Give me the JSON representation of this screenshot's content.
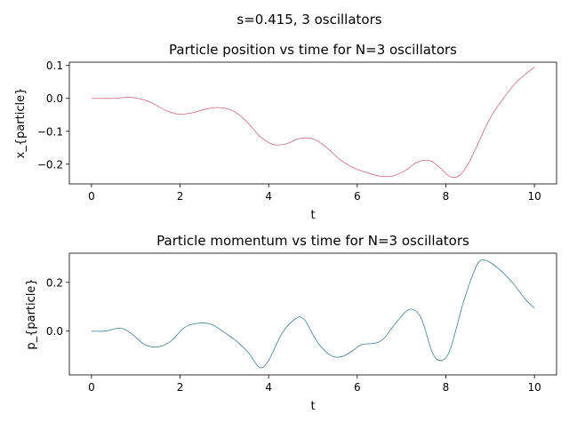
{
  "suptitle": "s=0.415, 3 oscillators",
  "chart_data": [
    {
      "type": "line",
      "title": "Particle position vs time for N=3 oscillators",
      "xlabel": "t",
      "ylabel": "x_{particle}",
      "xlim": [
        -0.5,
        10.5
      ],
      "ylim": [
        -0.26,
        0.11
      ],
      "xticks": [
        0,
        2,
        4,
        6,
        8,
        10
      ],
      "yticks": [
        -0.2,
        -0.1,
        0.0,
        0.1
      ],
      "xtick_labels": [
        "0",
        "2",
        "4",
        "6",
        "8",
        "10"
      ],
      "ytick_labels": [
        "−0.2",
        "−0.1",
        "0.0",
        "0.1"
      ],
      "grid": false,
      "color": "#c8677a",
      "x": [
        0,
        0.5,
        0.9,
        1.3,
        1.7,
        2.0,
        2.3,
        2.6,
        2.9,
        3.2,
        3.5,
        3.8,
        4.1,
        4.4,
        4.7,
        5.0,
        5.3,
        5.6,
        5.9,
        6.2,
        6.5,
        6.8,
        7.1,
        7.3,
        7.5,
        7.7,
        7.9,
        8.1,
        8.3,
        8.5,
        8.7,
        9.0,
        9.3,
        9.6,
        10.0
      ],
      "y": [
        0.0,
        0.0,
        0.003,
        -0.01,
        -0.038,
        -0.048,
        -0.043,
        -0.032,
        -0.028,
        -0.038,
        -0.07,
        -0.115,
        -0.14,
        -0.138,
        -0.122,
        -0.123,
        -0.148,
        -0.185,
        -0.21,
        -0.225,
        -0.236,
        -0.236,
        -0.218,
        -0.198,
        -0.188,
        -0.193,
        -0.215,
        -0.238,
        -0.235,
        -0.2,
        -0.145,
        -0.06,
        0.0,
        0.05,
        0.095
      ]
    },
    {
      "type": "line",
      "title": "Particle momentum vs time for N=3 oscillators",
      "xlabel": "t",
      "ylabel": "p_{particle}",
      "xlim": [
        -0.5,
        10.5
      ],
      "ylim": [
        -0.18,
        0.32
      ],
      "xticks": [
        0,
        2,
        4,
        6,
        8,
        10
      ],
      "yticks": [
        0.0,
        0.2
      ],
      "xtick_labels": [
        "0",
        "2",
        "4",
        "6",
        "8",
        "10"
      ],
      "ytick_labels": [
        "0.0",
        "0.2"
      ],
      "grid": false,
      "color": "#3f7f93",
      "x": [
        0,
        0.3,
        0.65,
        0.9,
        1.2,
        1.5,
        1.8,
        2.1,
        2.4,
        2.7,
        3.0,
        3.3,
        3.55,
        3.8,
        4.0,
        4.3,
        4.6,
        4.8,
        5.1,
        5.4,
        5.65,
        5.9,
        6.1,
        6.4,
        6.6,
        6.9,
        7.2,
        7.45,
        7.7,
        7.9,
        8.1,
        8.4,
        8.7,
        8.9,
        9.2,
        9.5,
        9.8,
        10.0
      ],
      "y": [
        0.0,
        0.0,
        0.012,
        -0.01,
        -0.055,
        -0.065,
        -0.04,
        0.015,
        0.032,
        0.028,
        -0.005,
        -0.045,
        -0.09,
        -0.15,
        -0.12,
        -0.01,
        0.05,
        0.048,
        -0.045,
        -0.1,
        -0.105,
        -0.08,
        -0.055,
        -0.05,
        -0.03,
        0.04,
        0.09,
        0.05,
        -0.09,
        -0.12,
        -0.075,
        0.12,
        0.27,
        0.29,
        0.255,
        0.2,
        0.13,
        0.095
      ]
    }
  ]
}
